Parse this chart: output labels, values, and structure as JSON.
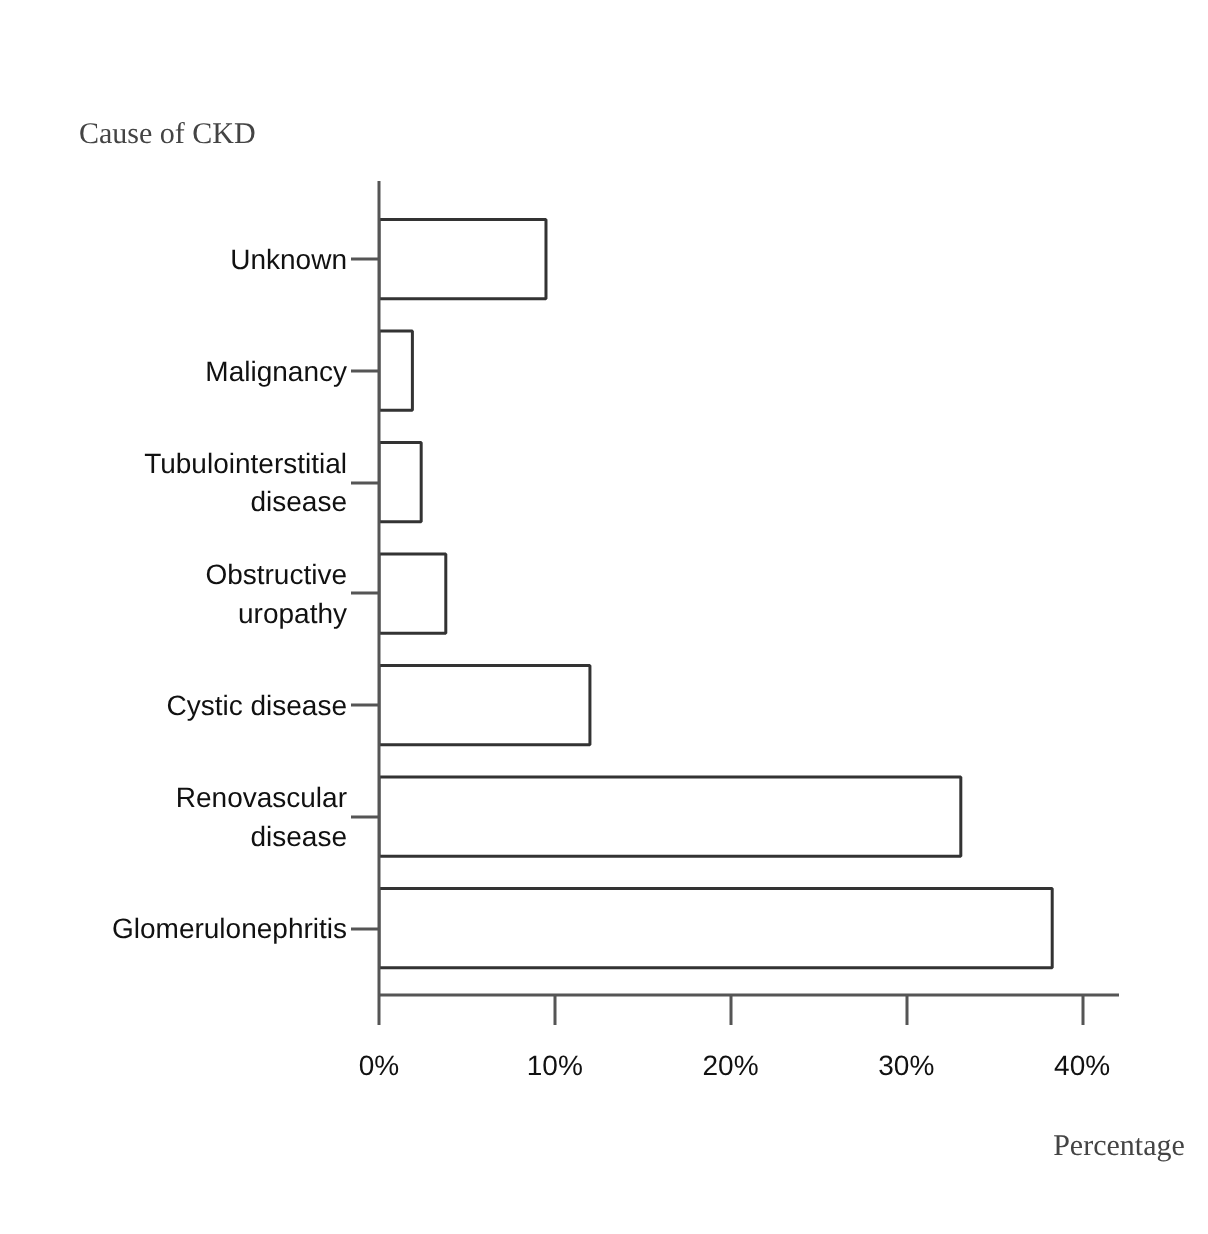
{
  "chart_data": {
    "type": "bar",
    "orientation": "horizontal",
    "ylabel": "Cause of CKD",
    "xlabel": "Percentage",
    "categories": [
      "Unknown",
      "Malignancy",
      "Tubulointerstitial\ndisease",
      "Obstructive\nuropathy",
      "Cystic disease",
      "Renovascular\ndisease",
      "Glomerulonephritis"
    ],
    "values": [
      9.5,
      1.9,
      2.4,
      3.8,
      12.0,
      33.1,
      38.3
    ],
    "color": "#ffffff",
    "xlim": [
      0,
      42.1
    ],
    "xticks": [
      {
        "value": 0,
        "label": "0%"
      },
      {
        "value": 10,
        "label": "10%"
      },
      {
        "value": 20,
        "label": "20%"
      },
      {
        "value": 30,
        "label": "30%"
      },
      {
        "value": 40,
        "label": "40%"
      }
    ],
    "grid": false
  }
}
